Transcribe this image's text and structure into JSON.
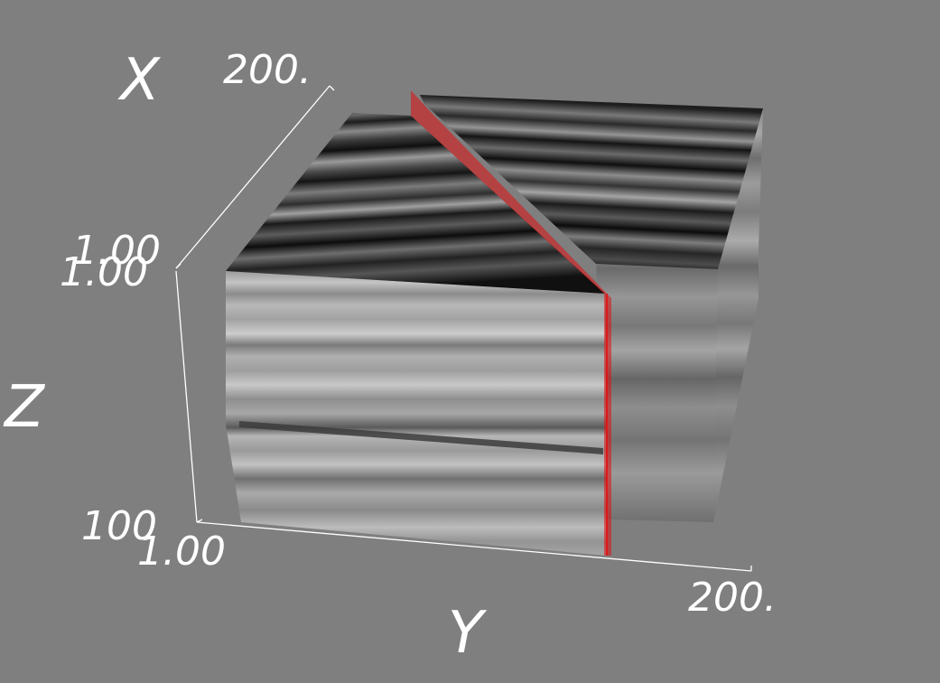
{
  "viewport": {
    "background_color": "#7f7f7f",
    "text_color": "#ffffff",
    "axis_color": "#ffffff",
    "slice_plane_color": "#e01010"
  },
  "axes": {
    "x": {
      "title": "X",
      "tick_min": "1.00",
      "tick_max": "200."
    },
    "y": {
      "title": "Y",
      "tick_min": "1.00",
      "tick_max": "200."
    },
    "z": {
      "title": "Z",
      "tick_min": "100",
      "tick_max": "1.00"
    }
  }
}
